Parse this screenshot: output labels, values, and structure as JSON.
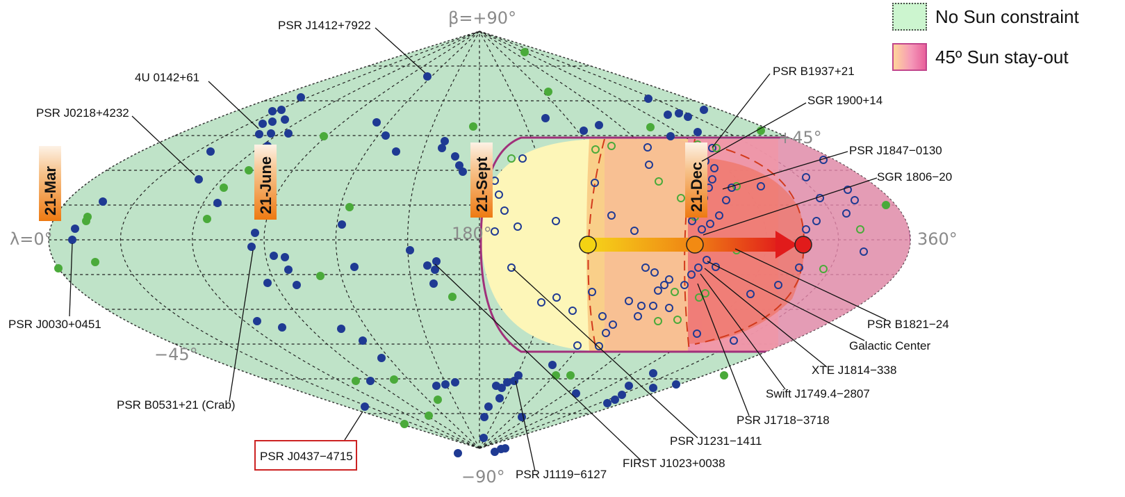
{
  "legend": {
    "items": [
      {
        "label": "No Sun constraint",
        "style": "dotted-green"
      },
      {
        "label": "45º Sun stay-out",
        "style": "pink-gradient"
      }
    ]
  },
  "axes": {
    "beta_top": "β=+90°",
    "beta_bottom": "−90°",
    "plus45": "+45°",
    "minus45": "−45°",
    "lambda0": "λ=0°",
    "lambda180": "180°",
    "lambda360": "360°"
  },
  "dates": [
    "21-Mar",
    "21-June",
    "21-Sept",
    "21-Dec"
  ],
  "sources": [
    {
      "name": "PSR J1412+7922"
    },
    {
      "name": "4U 0142+61"
    },
    {
      "name": "PSR J0218+4232"
    },
    {
      "name": "PSR J0030+0451"
    },
    {
      "name": "PSR B0531+21 (Crab)"
    },
    {
      "name": "PSR J0437−4715",
      "boxed": true
    },
    {
      "name": "PSR J1119−6127"
    },
    {
      "name": "FIRST J1023+0038"
    },
    {
      "name": "PSR J1231−1411"
    },
    {
      "name": "PSR J1718−3718"
    },
    {
      "name": "Swift J1749.4−2807"
    },
    {
      "name": "XTE J1814−338"
    },
    {
      "name": "Galactic Center"
    },
    {
      "name": "PSR B1821−24"
    },
    {
      "name": "SGR 1806−20"
    },
    {
      "name": "PSR J1847−0130"
    },
    {
      "name": "SGR 1900+14"
    },
    {
      "name": "PSR B1937+21"
    }
  ],
  "colors": {
    "sky_fill": "#bfe3c8",
    "dot_blue": "#1f3a93",
    "dot_green": "#4aaa3a",
    "stay_out_border": "#a0307a",
    "sun_yellow": "#f3d313",
    "sun_orange": "#f28a12",
    "sun_red": "#e11b1b",
    "boxed_label_border": "#cc2222"
  }
}
